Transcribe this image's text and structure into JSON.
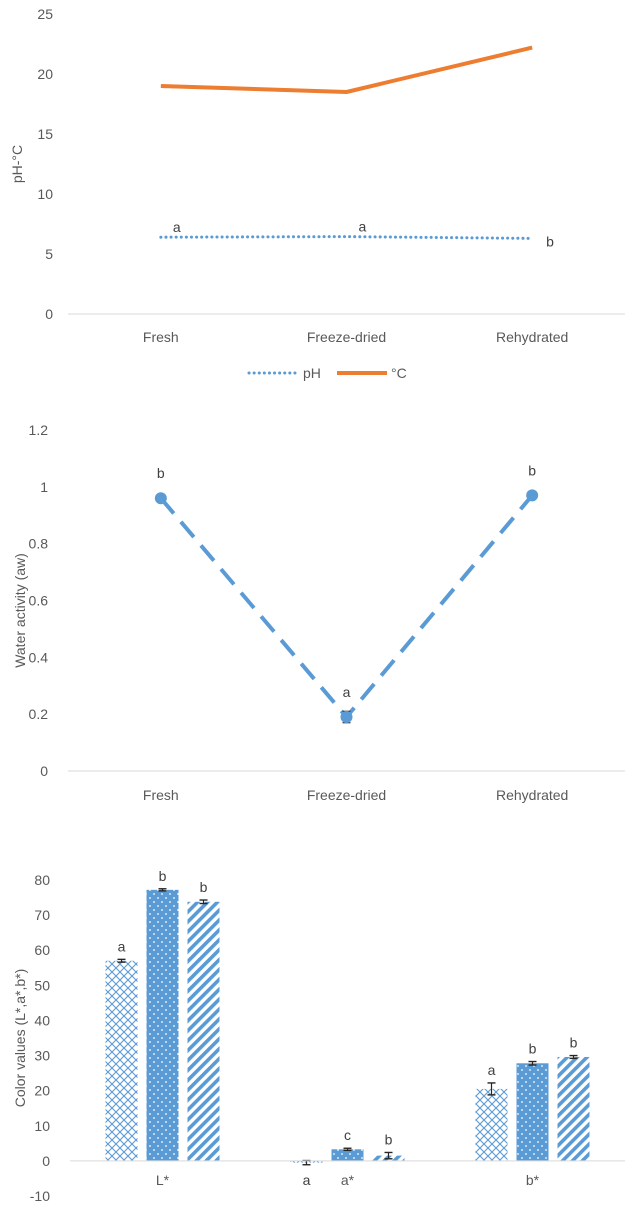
{
  "chart_data": [
    {
      "type": "line",
      "categories": [
        "Fresh",
        "Freeze-dried",
        "Rehydrated"
      ],
      "ylabel": "pH-°C",
      "ylim": [
        0,
        25
      ],
      "yticks": [
        0,
        5,
        10,
        15,
        20,
        25
      ],
      "grid": false,
      "legend_position": "bottom",
      "series": [
        {
          "name": "pH",
          "values": [
            6.4,
            6.45,
            6.3
          ],
          "style": "dotted",
          "color": "#5B9BD5",
          "annotations": [
            "a",
            "a",
            "b"
          ]
        },
        {
          "name": "°C",
          "values": [
            19.0,
            18.5,
            22.2
          ],
          "style": "solid",
          "color": "#ED7D31"
        }
      ]
    },
    {
      "type": "line",
      "categories": [
        "Fresh",
        "Freeze-dried",
        "Rehydrated"
      ],
      "ylabel": "Water activity (aw)",
      "ylim": [
        0,
        1.2
      ],
      "yticks": [
        "0",
        "0.2",
        "0.4",
        "0.6",
        "0.8",
        "1",
        "1.2"
      ],
      "grid": false,
      "series": [
        {
          "values": [
            0.96,
            0.19,
            0.97
          ],
          "errors": [
            0.005,
            0.02,
            0.005
          ],
          "style": "dashed",
          "marker": "circle",
          "color": "#5B9BD5",
          "annotations": [
            "b",
            "a",
            "b"
          ]
        }
      ]
    },
    {
      "type": "bar",
      "categories": [
        "L*",
        "a*",
        "b*"
      ],
      "ylabel": "Color values (L*,a*,b*)",
      "ylim": [
        -10,
        80
      ],
      "yticks": [
        -10,
        0,
        10,
        20,
        30,
        40,
        50,
        60,
        70,
        80
      ],
      "grid": false,
      "color": "#5B9BD5",
      "series": [
        {
          "pattern": "crosshatch",
          "values": [
            57.0,
            -0.5,
            20.5
          ],
          "errors": [
            0.4,
            0.6,
            1.7
          ],
          "annotations": [
            "a",
            "a",
            "a"
          ]
        },
        {
          "pattern": "dotted",
          "values": [
            77.2,
            3.3,
            27.8
          ],
          "errors": [
            0.3,
            0.3,
            0.5
          ],
          "annotations": [
            "b",
            "c",
            "b"
          ]
        },
        {
          "pattern": "diagonal",
          "values": [
            73.8,
            1.5,
            29.6
          ],
          "errors": [
            0.5,
            0.9,
            0.4
          ],
          "annotations": [
            "b",
            "b",
            "b"
          ]
        }
      ]
    }
  ]
}
